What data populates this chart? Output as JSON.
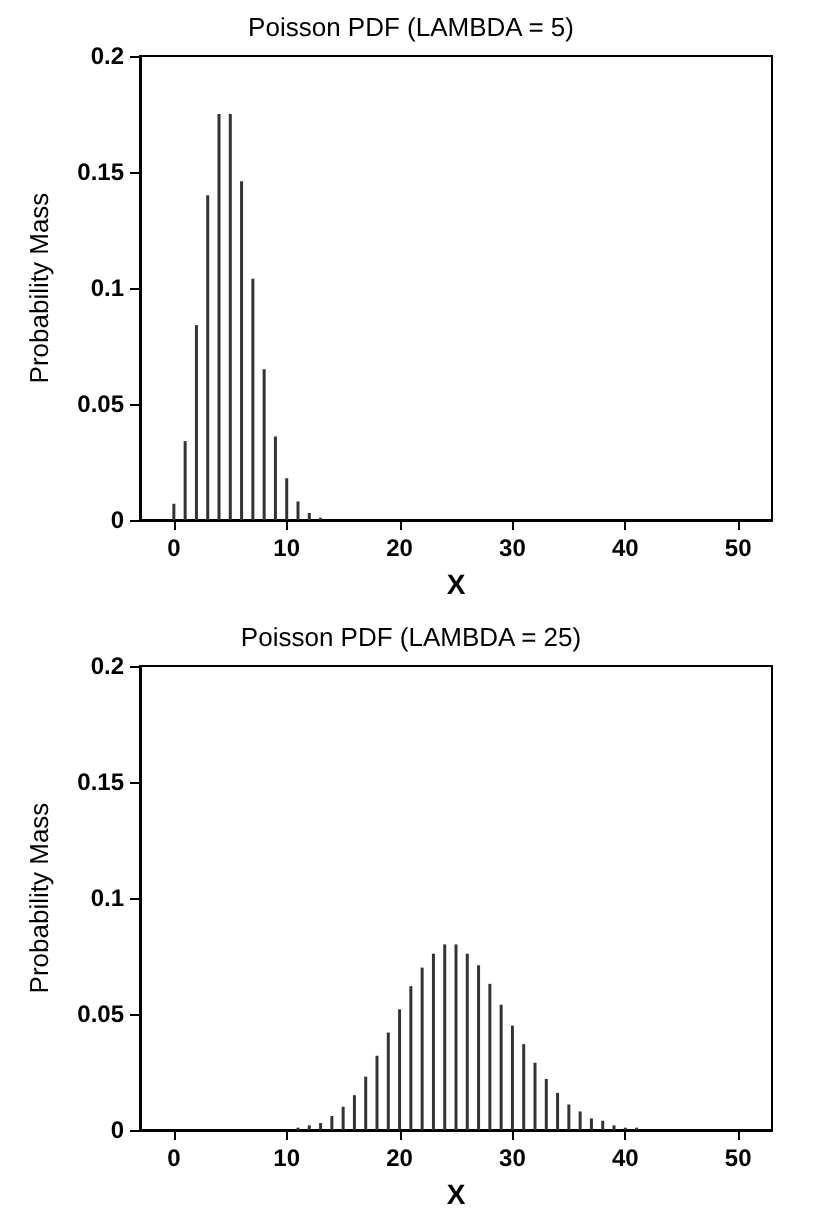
{
  "chart_data": [
    {
      "type": "bar",
      "title": "Poisson PDF (LAMBDA = 5)",
      "xlabel": "X",
      "ylabel": "Probability Mass",
      "xlim": [
        -3,
        53
      ],
      "xticks": [
        0,
        10,
        20,
        30,
        40,
        50
      ],
      "ylim": [
        0,
        0.2
      ],
      "yticks": [
        0,
        0.05,
        0.1,
        0.15,
        0.2
      ],
      "grid": false,
      "x": [
        0,
        1,
        2,
        3,
        4,
        5,
        6,
        7,
        8,
        9,
        10,
        11,
        12,
        13,
        14,
        15,
        16,
        17,
        18,
        19,
        20,
        21,
        22,
        23,
        24,
        25,
        26,
        27,
        28,
        29,
        30,
        31,
        32,
        33,
        34,
        35,
        36,
        37,
        38,
        39,
        40,
        41,
        42,
        43,
        44,
        45,
        46,
        47,
        48,
        49,
        50
      ],
      "series": [
        {
          "color": "#333333",
          "values": [
            0.007,
            0.034,
            0.084,
            0.14,
            0.175,
            0.175,
            0.146,
            0.104,
            0.065,
            0.036,
            0.018,
            0.008,
            0.003,
            0.001,
            0,
            0,
            0,
            0,
            0,
            0,
            0,
            0,
            0,
            0,
            0,
            0,
            0,
            0,
            0,
            0,
            0,
            0,
            0,
            0,
            0,
            0,
            0,
            0,
            0,
            0,
            0,
            0,
            0,
            0,
            0,
            0,
            0,
            0,
            0,
            0,
            0
          ]
        }
      ]
    },
    {
      "type": "bar",
      "title": "Poisson PDF (LAMBDA = 25)",
      "xlabel": "X",
      "ylabel": "Probability Mass",
      "xlim": [
        -3,
        53
      ],
      "xticks": [
        0,
        10,
        20,
        30,
        40,
        50
      ],
      "ylim": [
        0,
        0.2
      ],
      "yticks": [
        0,
        0.05,
        0.1,
        0.15,
        0.2
      ],
      "grid": false,
      "x": [
        0,
        1,
        2,
        3,
        4,
        5,
        6,
        7,
        8,
        9,
        10,
        11,
        12,
        13,
        14,
        15,
        16,
        17,
        18,
        19,
        20,
        21,
        22,
        23,
        24,
        25,
        26,
        27,
        28,
        29,
        30,
        31,
        32,
        33,
        34,
        35,
        36,
        37,
        38,
        39,
        40,
        41,
        42,
        43,
        44,
        45,
        46,
        47,
        48,
        49,
        50
      ],
      "series": [
        {
          "color": "#333333",
          "values": [
            0,
            0,
            0,
            0,
            0,
            0,
            0,
            0,
            0,
            0,
            0,
            0.001,
            0.002,
            0.003,
            0.006,
            0.01,
            0.015,
            0.023,
            0.032,
            0.042,
            0.052,
            0.062,
            0.07,
            0.076,
            0.08,
            0.08,
            0.076,
            0.071,
            0.063,
            0.054,
            0.045,
            0.037,
            0.029,
            0.022,
            0.016,
            0.011,
            0.008,
            0.005,
            0.004,
            0.002,
            0.001,
            0.001,
            0,
            0,
            0,
            0,
            0,
            0,
            0,
            0,
            0
          ]
        }
      ]
    }
  ]
}
